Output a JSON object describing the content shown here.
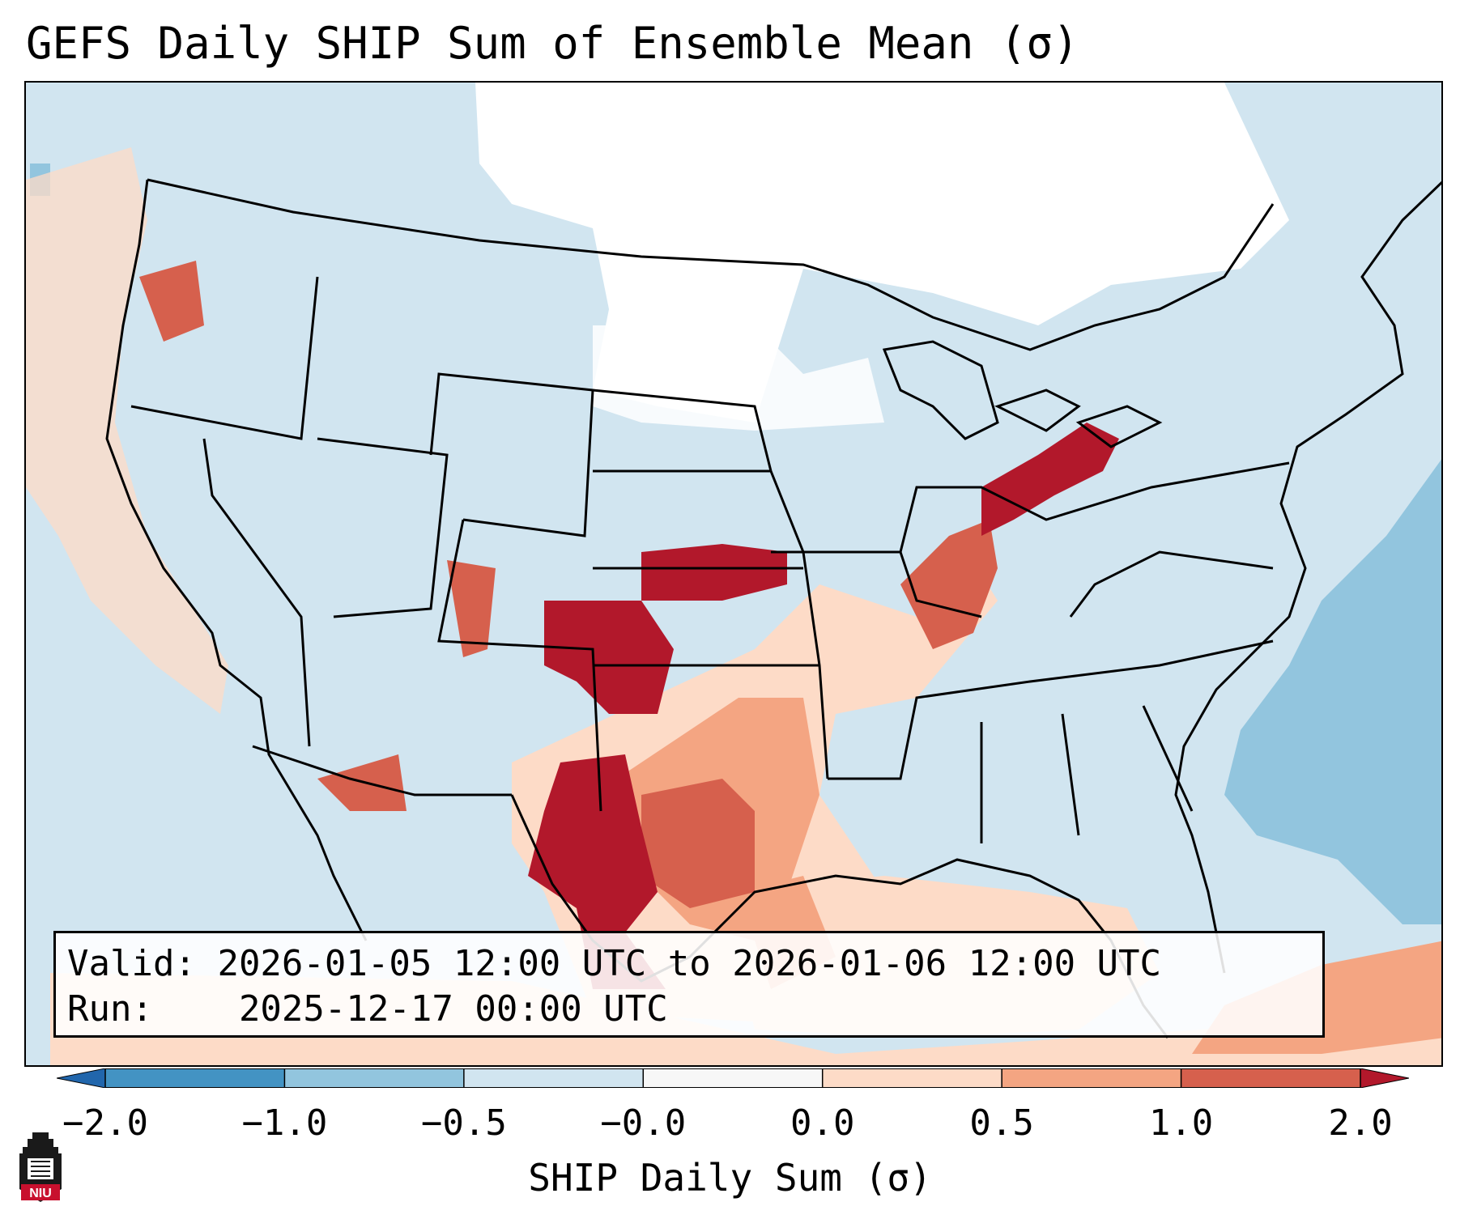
{
  "title": "GEFS Daily SHIP Sum of Ensemble Mean (σ)",
  "info": {
    "valid_label": "Valid:",
    "valid_value": "2026-01-05 12:00 UTC to 2026-01-06 12:00 UTC",
    "run_label": "Run:",
    "run_value": "2025-12-17 00:00 UTC"
  },
  "colorbar": {
    "label": "SHIP Daily Sum (σ)",
    "ticks": [
      "−2.0",
      "−1.0",
      "−0.5",
      "−0.0",
      "0.0",
      "0.5",
      "1.0",
      "2.0"
    ],
    "bin_colors": [
      "#4393c3",
      "#92c5de",
      "#d1e5f0",
      "#f7f7f7",
      "#fddbc7",
      "#f4a582",
      "#d6604d"
    ],
    "extend_low_color": "#2166ac",
    "extend_high_color": "#b2182b"
  },
  "colors": {
    "ocean_base": "#d1e5f0",
    "high_anomaly": "#b2182b",
    "mid_anomaly": "#d6604d",
    "low_anomaly": "#f4a582",
    "weak_anomaly": "#fddbc7",
    "negative_strong": "#92c5de",
    "neutral": "#ffffff"
  },
  "logo": {
    "text": "NIU",
    "icon": "niu-logo-icon"
  }
}
